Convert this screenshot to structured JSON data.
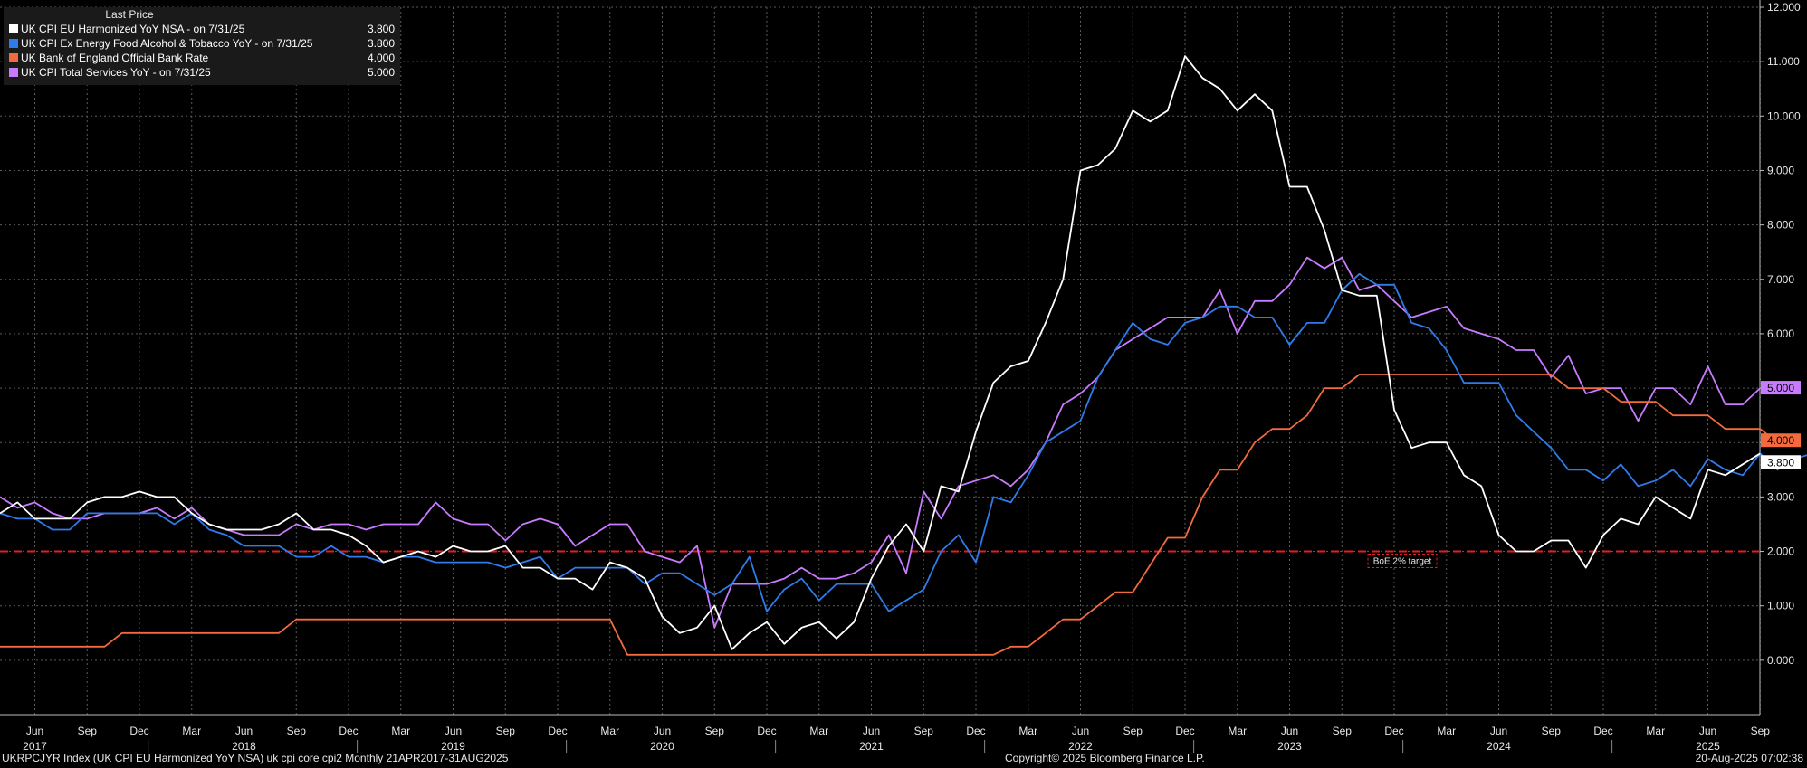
{
  "legend": {
    "header": "Last Price",
    "items": [
      {
        "name": "UK CPI EU Harmonized YoY NSA -  on 7/31/25",
        "value": "3.800",
        "color": "#ffffff"
      },
      {
        "name": "UK CPI Ex Energy Food Alcohol & Tobacco YoY -  on 7/31/25",
        "value": "3.800",
        "color": "#2f7bea"
      },
      {
        "name": "UK Bank of England Official Bank Rate",
        "value": "4.000",
        "color": "#f26a3d"
      },
      {
        "name": "UK CPI Total Services YoY -  on 7/31/25",
        "value": "5.000",
        "color": "#c97bff"
      }
    ]
  },
  "footer": {
    "left": "UKRPCJYR Index (UK CPI EU Harmonized YoY NSA) uk cpi core cpi2  Monthly 21APR2017-31AUG2025",
    "center": "Copyright© 2025 Bloomberg Finance L.P.",
    "right": "20-Aug-2025 07:02:38"
  },
  "chart_data": {
    "type": "line",
    "x_start": "2017-04",
    "x_end": "2025-09",
    "ylim": [
      -1.0,
      12.0
    ],
    "yticks": [
      "0.000",
      "1.000",
      "2.000",
      "3.000",
      "4.000",
      "5.000",
      "6.000",
      "7.000",
      "8.000",
      "9.000",
      "10.000",
      "11.000",
      "12.000"
    ],
    "month_ticks": [
      "Jun",
      "Sep",
      "Dec",
      "Mar",
      "Jun",
      "Sep",
      "Dec",
      "Mar",
      "Jun",
      "Sep",
      "Dec",
      "Mar",
      "Jun",
      "Sep",
      "Dec",
      "Mar",
      "Jun",
      "Sep",
      "Dec",
      "Mar",
      "Jun",
      "Sep",
      "Dec",
      "Mar",
      "Jun",
      "Sep",
      "Dec",
      "Mar",
      "Jun",
      "Sep",
      "Dec",
      "Mar",
      "Jun",
      "Sep"
    ],
    "years": [
      "2017",
      "2018",
      "2019",
      "2020",
      "2021",
      "2022",
      "2023",
      "2024",
      "2025"
    ],
    "grid": true,
    "reference_line": {
      "value": 2.0,
      "label": "BoE 2% target",
      "color": "#e02020"
    },
    "last_value_labels": [
      "5.000",
      "4.000",
      "3.800"
    ],
    "series": [
      {
        "name": "UK CPI Total Services YoY",
        "color": "#c97bff",
        "values": [
          3.0,
          2.8,
          2.9,
          2.7,
          2.6,
          2.6,
          2.7,
          2.7,
          2.7,
          2.8,
          2.6,
          2.8,
          2.5,
          2.4,
          2.3,
          2.3,
          2.3,
          2.5,
          2.4,
          2.5,
          2.5,
          2.4,
          2.5,
          2.5,
          2.5,
          2.9,
          2.6,
          2.5,
          2.5,
          2.2,
          2.5,
          2.6,
          2.5,
          2.1,
          2.3,
          2.5,
          2.5,
          2.0,
          1.9,
          1.8,
          2.1,
          0.6,
          1.4,
          1.4,
          1.4,
          1.5,
          1.7,
          1.5,
          1.5,
          1.6,
          1.8,
          2.3,
          1.6,
          3.1,
          2.6,
          3.2,
          3.3,
          3.4,
          3.2,
          3.5,
          4.0,
          4.7,
          4.9,
          5.2,
          5.7,
          5.9,
          6.1,
          6.3,
          6.3,
          6.3,
          6.8,
          6.0,
          6.6,
          6.6,
          6.9,
          7.4,
          7.2,
          7.4,
          6.8,
          6.9,
          6.6,
          6.3,
          6.4,
          6.5,
          6.1,
          6.0,
          5.9,
          5.7,
          5.7,
          5.2,
          5.6,
          4.9,
          5.0,
          5.0,
          4.4,
          5.0,
          5.0,
          4.7,
          5.4,
          4.7,
          4.7,
          5.0
        ]
      },
      {
        "name": "UK Bank of England Official Bank Rate",
        "color": "#f26a3d",
        "values": [
          0.25,
          0.25,
          0.25,
          0.25,
          0.25,
          0.25,
          0.25,
          0.5,
          0.5,
          0.5,
          0.5,
          0.5,
          0.5,
          0.5,
          0.5,
          0.5,
          0.5,
          0.75,
          0.75,
          0.75,
          0.75,
          0.75,
          0.75,
          0.75,
          0.75,
          0.75,
          0.75,
          0.75,
          0.75,
          0.75,
          0.75,
          0.75,
          0.75,
          0.75,
          0.75,
          0.75,
          0.1,
          0.1,
          0.1,
          0.1,
          0.1,
          0.1,
          0.1,
          0.1,
          0.1,
          0.1,
          0.1,
          0.1,
          0.1,
          0.1,
          0.1,
          0.1,
          0.1,
          0.1,
          0.1,
          0.1,
          0.1,
          0.1,
          0.25,
          0.25,
          0.5,
          0.75,
          0.75,
          1.0,
          1.25,
          1.25,
          1.75,
          2.25,
          2.25,
          3.0,
          3.5,
          3.5,
          4.0,
          4.25,
          4.25,
          4.5,
          5.0,
          5.0,
          5.25,
          5.25,
          5.25,
          5.25,
          5.25,
          5.25,
          5.25,
          5.25,
          5.25,
          5.25,
          5.25,
          5.25,
          5.0,
          5.0,
          5.0,
          4.75,
          4.75,
          4.75,
          4.5,
          4.5,
          4.5,
          4.25,
          4.25,
          4.25,
          4.0
        ]
      },
      {
        "name": "UK CPI Ex Energy Food Alcohol & Tobacco YoY",
        "color": "#2f7bea",
        "values": [
          2.7,
          2.6,
          2.6,
          2.4,
          2.4,
          2.7,
          2.7,
          2.7,
          2.7,
          2.7,
          2.5,
          2.7,
          2.4,
          2.3,
          2.1,
          2.1,
          2.1,
          1.9,
          1.9,
          2.1,
          1.9,
          1.9,
          1.8,
          1.9,
          1.9,
          1.8,
          1.8,
          1.8,
          1.8,
          1.7,
          1.8,
          1.9,
          1.5,
          1.7,
          1.7,
          1.7,
          1.7,
          1.4,
          1.6,
          1.6,
          1.4,
          1.2,
          1.4,
          1.9,
          0.9,
          1.3,
          1.5,
          1.1,
          1.4,
          1.4,
          1.4,
          0.9,
          1.1,
          1.3,
          2.0,
          2.3,
          1.8,
          3.0,
          2.9,
          3.4,
          4.0,
          4.2,
          4.4,
          5.2,
          5.7,
          6.2,
          5.9,
          5.8,
          6.2,
          6.3,
          6.5,
          6.5,
          6.3,
          6.3,
          5.8,
          6.2,
          6.2,
          6.8,
          7.1,
          6.9,
          6.9,
          6.2,
          6.1,
          5.7,
          5.1,
          5.1,
          5.1,
          4.5,
          4.2,
          3.9,
          3.5,
          3.5,
          3.3,
          3.6,
          3.2,
          3.3,
          3.5,
          3.2,
          3.7,
          3.5,
          3.4,
          3.8,
          3.5,
          3.7,
          3.8
        ]
      },
      {
        "name": "UK CPI EU Harmonized YoY NSA",
        "color": "#ffffff",
        "values": [
          2.7,
          2.9,
          2.6,
          2.6,
          2.6,
          2.9,
          3.0,
          3.0,
          3.1,
          3.0,
          3.0,
          2.7,
          2.5,
          2.4,
          2.4,
          2.4,
          2.5,
          2.7,
          2.4,
          2.4,
          2.3,
          2.1,
          1.8,
          1.9,
          2.0,
          1.9,
          2.1,
          2.0,
          2.0,
          2.1,
          1.7,
          1.7,
          1.5,
          1.5,
          1.3,
          1.8,
          1.7,
          1.5,
          0.8,
          0.5,
          0.6,
          1.0,
          0.2,
          0.5,
          0.7,
          0.3,
          0.6,
          0.7,
          0.4,
          0.7,
          1.5,
          2.1,
          2.5,
          2.0,
          3.2,
          3.1,
          4.2,
          5.1,
          5.4,
          5.5,
          6.2,
          7.0,
          9.0,
          9.1,
          9.4,
          10.1,
          9.9,
          10.1,
          11.1,
          10.7,
          10.5,
          10.1,
          10.4,
          10.1,
          8.7,
          8.7,
          7.9,
          6.8,
          6.7,
          6.7,
          4.6,
          3.9,
          4.0,
          4.0,
          3.4,
          3.2,
          2.3,
          2.0,
          2.0,
          2.2,
          2.2,
          1.7,
          2.3,
          2.6,
          2.5,
          3.0,
          2.8,
          2.6,
          3.5,
          3.4,
          3.6,
          3.8
        ]
      }
    ]
  }
}
